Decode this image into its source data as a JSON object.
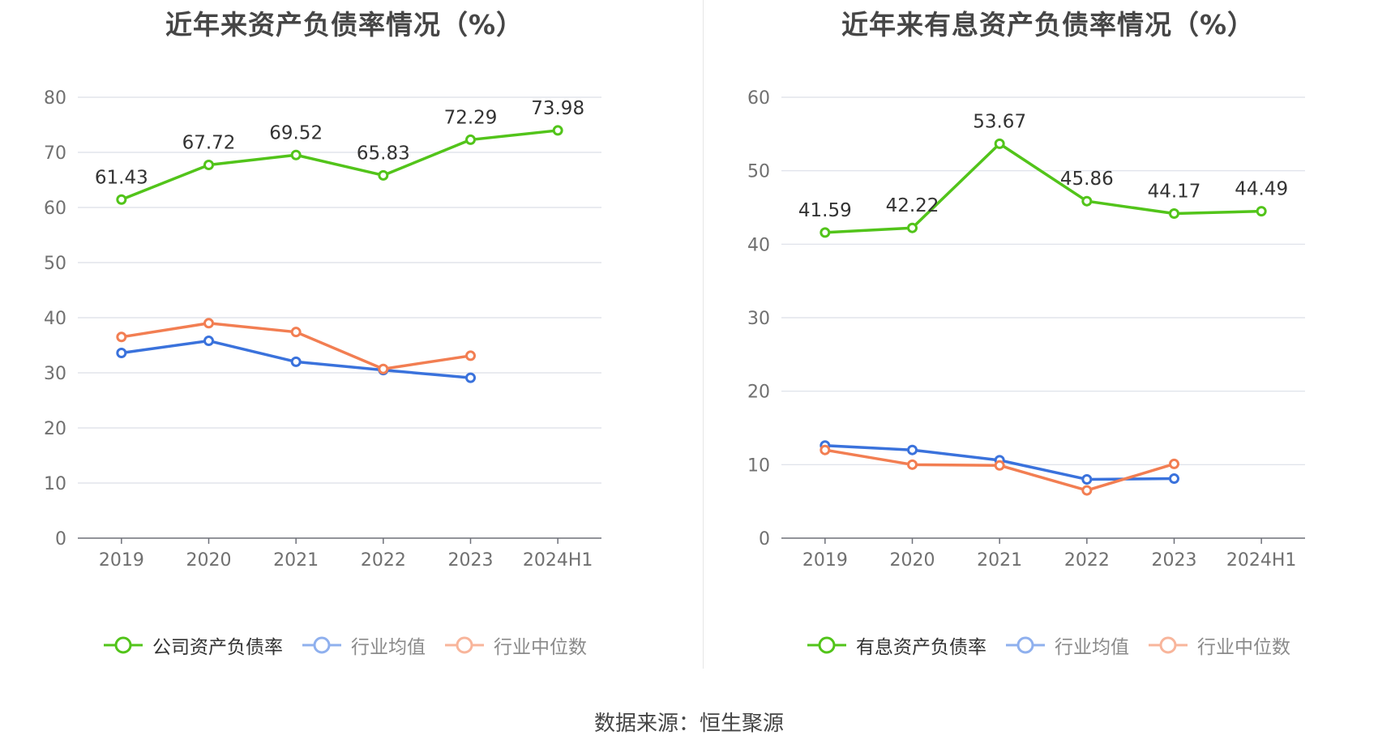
{
  "source_text": "数据来源：恒生聚源",
  "chart_data": [
    {
      "type": "line",
      "title": "近年来资产负债率情况（%）",
      "categories": [
        "2019",
        "2020",
        "2021",
        "2022",
        "2023",
        "2024H1"
      ],
      "ylim": [
        0,
        80
      ],
      "yticks": [
        "0",
        "10",
        "20",
        "30",
        "40",
        "50",
        "60",
        "70",
        "80"
      ],
      "series": [
        {
          "name": "公司资产负债率",
          "color": "#52c41a",
          "labels": true,
          "values": [
            61.43,
            67.72,
            69.52,
            65.83,
            72.29,
            73.98
          ],
          "value_labels": [
            "61.43",
            "67.72",
            "69.52",
            "65.83",
            "72.29",
            "73.98"
          ]
        },
        {
          "name": "行业均值",
          "color": "#3a72dc",
          "labels": false,
          "values": [
            33.6,
            35.8,
            32.0,
            30.5,
            29.1,
            null
          ]
        },
        {
          "name": "行业中位数",
          "color": "#f27e52",
          "labels": false,
          "values": [
            36.5,
            39.0,
            37.4,
            30.7,
            33.1,
            null
          ]
        }
      ]
    },
    {
      "type": "line",
      "title": "近年来有息资产负债率情况（%）",
      "categories": [
        "2019",
        "2020",
        "2021",
        "2022",
        "2023",
        "2024H1"
      ],
      "ylim": [
        0,
        60
      ],
      "yticks": [
        "0",
        "10",
        "20",
        "30",
        "40",
        "50",
        "60"
      ],
      "series": [
        {
          "name": "有息资产负债率",
          "color": "#52c41a",
          "labels": true,
          "values": [
            41.59,
            42.22,
            53.67,
            45.86,
            44.17,
            44.49
          ],
          "value_labels": [
            "41.59",
            "42.22",
            "53.67",
            "45.86",
            "44.17",
            "44.49"
          ]
        },
        {
          "name": "行业均值",
          "color": "#3a72dc",
          "labels": false,
          "values": [
            12.6,
            12.0,
            10.6,
            8.0,
            8.1,
            null
          ]
        },
        {
          "name": "行业中位数",
          "color": "#f27e52",
          "labels": false,
          "values": [
            12.0,
            10.0,
            9.9,
            6.5,
            10.1,
            null
          ]
        }
      ]
    }
  ]
}
